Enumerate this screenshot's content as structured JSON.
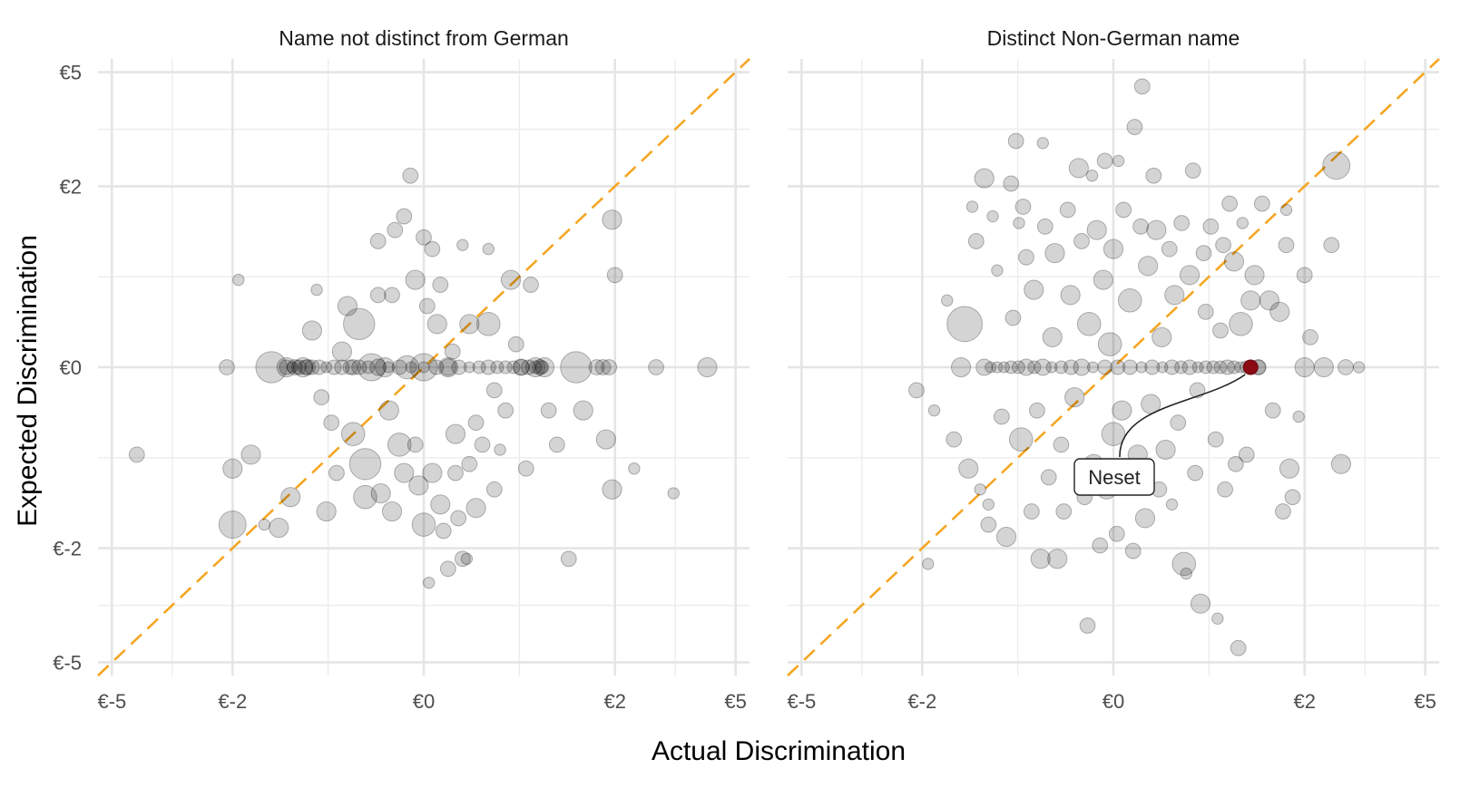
{
  "chart_data": {
    "type": "scatter",
    "xlabel": "Actual Discrimination",
    "ylabel": "Expected Discrimination",
    "scale": "symmetric-log",
    "xlim": [
      -5.5,
      5.5
    ],
    "ylim": [
      -5.5,
      5.5
    ],
    "ticks": [
      -5,
      -2,
      0,
      2,
      5
    ],
    "tick_labels": [
      "€-5",
      "€-2",
      "€0",
      "€2",
      "€5"
    ],
    "grid": true,
    "reference_line": "y = x",
    "colors": {
      "reference_line": "#f5a623",
      "points": "#000000",
      "highlight": "#8b0a14"
    },
    "panels": [
      {
        "title": "Name not distinct from German",
        "points": [
          [
            -4.2,
            -0.7,
            2
          ],
          [
            -2.1,
            0,
            2
          ],
          [
            -2,
            -1.6,
            5
          ],
          [
            -1.9,
            0.7,
            1
          ],
          [
            -2,
            -0.85,
            3
          ],
          [
            -1.7,
            -0.7,
            3
          ],
          [
            -1.5,
            -1.6,
            1
          ],
          [
            -1.3,
            -1.65,
            3
          ],
          [
            -1.15,
            -1.2,
            3
          ],
          [
            -1.4,
            0,
            6
          ],
          [
            -1.2,
            0,
            3
          ],
          [
            -1.1,
            0,
            2
          ],
          [
            -1,
            0,
            3
          ],
          [
            -0.95,
            0,
            2
          ],
          [
            -0.9,
            0.25,
            3
          ],
          [
            -0.85,
            0.6,
            1
          ],
          [
            -0.8,
            -0.2,
            2
          ],
          [
            -0.75,
            -1.4,
            3
          ],
          [
            -0.7,
            -0.4,
            2
          ],
          [
            -0.65,
            -0.9,
            2
          ],
          [
            -0.6,
            0.1,
            3
          ],
          [
            -0.55,
            0.45,
            3
          ],
          [
            -0.5,
            -0.5,
            4
          ],
          [
            -0.5,
            0,
            2
          ],
          [
            -0.45,
            0.3,
            6
          ],
          [
            -0.4,
            -0.8,
            6
          ],
          [
            -0.4,
            -1.2,
            4
          ],
          [
            -0.35,
            0,
            5
          ],
          [
            -0.3,
            0.55,
            2
          ],
          [
            -0.3,
            1.15,
            2
          ],
          [
            -0.28,
            -1.15,
            3
          ],
          [
            -0.25,
            0,
            3
          ],
          [
            -0.22,
            -0.3,
            3
          ],
          [
            -0.2,
            -1.4,
            3
          ],
          [
            -0.2,
            0.55,
            2
          ],
          [
            -0.18,
            1.3,
            2
          ],
          [
            -0.15,
            -0.6,
            4
          ],
          [
            -0.12,
            1.5,
            2
          ],
          [
            -0.12,
            -0.9,
            3
          ],
          [
            -0.1,
            0,
            4
          ],
          [
            -0.08,
            2.2,
            2
          ],
          [
            -0.05,
            0.7,
            3
          ],
          [
            -0.05,
            -0.6,
            2
          ],
          [
            -0.03,
            -1.05,
            3
          ],
          [
            0,
            -1.6,
            4
          ],
          [
            0,
            1.2,
            2
          ],
          [
            0,
            0,
            5
          ],
          [
            0.02,
            0.45,
            2
          ],
          [
            0.03,
            -2.7,
            1
          ],
          [
            0.05,
            1.05,
            2
          ],
          [
            0.05,
            -0.9,
            3
          ],
          [
            0.08,
            0.3,
            3
          ],
          [
            0.1,
            -1.3,
            3
          ],
          [
            0.1,
            0.65,
            2
          ],
          [
            0.12,
            -1.7,
            2
          ],
          [
            0.15,
            -2.4,
            2
          ],
          [
            0.15,
            0,
            3
          ],
          [
            0.18,
            0.1,
            2
          ],
          [
            0.2,
            -0.5,
            3
          ],
          [
            0.2,
            -0.9,
            2
          ],
          [
            0.22,
            -1.5,
            2
          ],
          [
            0.25,
            1.1,
            1
          ],
          [
            0.25,
            -2.2,
            2
          ],
          [
            0.28,
            -2.2,
            1
          ],
          [
            0.3,
            -0.8,
            2
          ],
          [
            0.3,
            0.3,
            3
          ],
          [
            0.35,
            -0.4,
            2
          ],
          [
            0.35,
            -1.35,
            3
          ],
          [
            0.4,
            -0.6,
            2
          ],
          [
            0.45,
            0.3,
            4
          ],
          [
            0.45,
            1.05,
            1
          ],
          [
            0.5,
            -0.15,
            2
          ],
          [
            0.5,
            -1.1,
            2
          ],
          [
            0.55,
            -0.65,
            1
          ],
          [
            0.6,
            -0.3,
            2
          ],
          [
            0.65,
            0.7,
            3
          ],
          [
            0.7,
            0.15,
            2
          ],
          [
            0.75,
            0,
            2
          ],
          [
            0.8,
            -0.85,
            2
          ],
          [
            0.85,
            0.65,
            2
          ],
          [
            0.9,
            0,
            3
          ],
          [
            0.95,
            0,
            2
          ],
          [
            1,
            0,
            3
          ],
          [
            1.05,
            -0.3,
            2
          ],
          [
            1.15,
            -0.6,
            2
          ],
          [
            1.3,
            -2.2,
            2
          ],
          [
            1.4,
            0,
            6
          ],
          [
            1.5,
            -0.3,
            3
          ],
          [
            1.7,
            0,
            2
          ],
          [
            1.8,
            0,
            2
          ],
          [
            1.85,
            -0.55,
            3
          ],
          [
            1.9,
            0,
            2
          ],
          [
            1.95,
            1.45,
            3
          ],
          [
            1.95,
            -1.1,
            3
          ],
          [
            2,
            0.75,
            2
          ],
          [
            2.35,
            -0.85,
            1
          ],
          [
            2.8,
            0,
            2
          ],
          [
            3.2,
            -1.15,
            1
          ],
          [
            4.1,
            0,
            3
          ]
        ],
        "spine": [
          -1.2,
          1.0,
          0.15
        ]
      },
      {
        "title": "Distinct Non-German name",
        "points": [
          [
            -2.1,
            -0.15,
            2
          ],
          [
            -1.9,
            -2.3,
            1
          ],
          [
            -1.8,
            -0.3,
            1
          ],
          [
            -1.6,
            0.5,
            1
          ],
          [
            -1.5,
            -0.55,
            2
          ],
          [
            -1.4,
            0,
            3
          ],
          [
            -1.35,
            0.3,
            7
          ],
          [
            -1.3,
            -0.85,
            3
          ],
          [
            -1.25,
            1.65,
            1
          ],
          [
            -1.2,
            1.15,
            2
          ],
          [
            -1.15,
            -1.1,
            1
          ],
          [
            -1.1,
            2.15,
            3
          ],
          [
            -1.05,
            -1.6,
            2
          ],
          [
            -1.05,
            -1.3,
            1
          ],
          [
            -1,
            1.5,
            1
          ],
          [
            -0.95,
            0.8,
            1
          ],
          [
            -0.9,
            -0.35,
            2
          ],
          [
            -0.85,
            -1.8,
            3
          ],
          [
            -0.8,
            2.05,
            2
          ],
          [
            -0.78,
            0.35,
            2
          ],
          [
            -0.75,
            2.95,
            2
          ],
          [
            -0.72,
            1.4,
            1
          ],
          [
            -0.7,
            -0.55,
            4
          ],
          [
            -0.68,
            1.65,
            2
          ],
          [
            -0.65,
            0.95,
            2
          ],
          [
            -0.6,
            -1.4,
            2
          ],
          [
            -0.58,
            0.6,
            3
          ],
          [
            -0.55,
            -0.3,
            2
          ],
          [
            -0.52,
            -2.2,
            3
          ],
          [
            -0.5,
            2.9,
            1
          ],
          [
            -0.48,
            1.35,
            2
          ],
          [
            -0.45,
            -0.95,
            2
          ],
          [
            -0.42,
            0.2,
            3
          ],
          [
            -0.4,
            1.0,
            3
          ],
          [
            -0.38,
            -2.2,
            3
          ],
          [
            -0.35,
            -0.6,
            2
          ],
          [
            -0.33,
            -1.4,
            2
          ],
          [
            -0.3,
            1.6,
            2
          ],
          [
            -0.28,
            0.55,
            3
          ],
          [
            -0.25,
            -0.2,
            3
          ],
          [
            -0.22,
            2.35,
            3
          ],
          [
            -0.2,
            1.15,
            2
          ],
          [
            -0.18,
            -1.2,
            2
          ],
          [
            -0.16,
            -3.8,
            2
          ],
          [
            -0.15,
            0.3,
            4
          ],
          [
            -0.13,
            2.2,
            1
          ],
          [
            -0.12,
            -0.8,
            3
          ],
          [
            -0.1,
            1.3,
            3
          ],
          [
            -0.08,
            -1.95,
            2
          ],
          [
            -0.06,
            0.7,
            3
          ],
          [
            -0.05,
            2.5,
            2
          ],
          [
            -0.04,
            -1.1,
            3
          ],
          [
            -0.02,
            0.15,
            4
          ],
          [
            0,
            -0.5,
            4
          ],
          [
            0,
            1.05,
            3
          ],
          [
            0.02,
            -1.75,
            2
          ],
          [
            0.03,
            2.5,
            1
          ],
          [
            0.05,
            -0.3,
            3
          ],
          [
            0.06,
            1.6,
            2
          ],
          [
            0.08,
            -0.95,
            3
          ],
          [
            0.1,
            0.5,
            4
          ],
          [
            0.12,
            -2.05,
            2
          ],
          [
            0.13,
            3.3,
            2
          ],
          [
            0.15,
            -0.7,
            3
          ],
          [
            0.17,
            1.35,
            2
          ],
          [
            0.18,
            4.5,
            2
          ],
          [
            0.2,
            -1.5,
            3
          ],
          [
            0.22,
            0.85,
            3
          ],
          [
            0.24,
            -0.25,
            3
          ],
          [
            0.26,
            2.2,
            2
          ],
          [
            0.28,
            1.3,
            3
          ],
          [
            0.3,
            -1.1,
            2
          ],
          [
            0.32,
            0.2,
            3
          ],
          [
            0.35,
            -0.65,
            3
          ],
          [
            0.38,
            1.05,
            2
          ],
          [
            0.4,
            -1.3,
            1
          ],
          [
            0.42,
            0.55,
            3
          ],
          [
            0.45,
            -0.4,
            2
          ],
          [
            0.48,
            1.4,
            2
          ],
          [
            0.5,
            -2.3,
            4
          ],
          [
            0.52,
            -2.5,
            1
          ],
          [
            0.55,
            0.75,
            3
          ],
          [
            0.58,
            2.3,
            2
          ],
          [
            0.6,
            -0.9,
            2
          ],
          [
            0.62,
            -0.15,
            2
          ],
          [
            0.65,
            -3.2,
            3
          ],
          [
            0.68,
            1.0,
            2
          ],
          [
            0.7,
            0.4,
            2
          ],
          [
            0.75,
            1.35,
            2
          ],
          [
            0.8,
            -0.55,
            2
          ],
          [
            0.82,
            -3.6,
            1
          ],
          [
            0.85,
            0.25,
            2
          ],
          [
            0.88,
            1.1,
            2
          ],
          [
            0.9,
            -1.1,
            2
          ],
          [
            0.95,
            1.7,
            2
          ],
          [
            1,
            0.9,
            3
          ],
          [
            1.02,
            -0.8,
            2
          ],
          [
            1.05,
            -4.5,
            2
          ],
          [
            1.08,
            0.3,
            4
          ],
          [
            1.1,
            1.4,
            1
          ],
          [
            1.15,
            -0.7,
            2
          ],
          [
            1.2,
            0.5,
            3
          ],
          [
            1.25,
            0.75,
            3
          ],
          [
            1.3,
            0,
            2
          ],
          [
            1.35,
            1.7,
            2
          ],
          [
            1.45,
            0.5,
            3
          ],
          [
            1.5,
            -0.3,
            2
          ],
          [
            1.6,
            0.4,
            3
          ],
          [
            1.65,
            -1.4,
            2
          ],
          [
            1.7,
            1.1,
            2
          ],
          [
            1.7,
            1.6,
            1
          ],
          [
            1.75,
            -0.85,
            3
          ],
          [
            1.8,
            -1.2,
            2
          ],
          [
            1.9,
            -0.35,
            1
          ],
          [
            2,
            0,
            3
          ],
          [
            2,
            0.75,
            2
          ],
          [
            2.1,
            0.2,
            2
          ],
          [
            2.35,
            0,
            3
          ],
          [
            2.5,
            1.1,
            2
          ],
          [
            2.6,
            2.4,
            5
          ],
          [
            2.7,
            -0.8,
            3
          ],
          [
            2.8,
            0,
            2
          ],
          [
            3.1,
            0,
            1
          ]
        ],
        "spine": [
          -1.1,
          1.35,
          0.15
        ],
        "highlight": {
          "x": 1.2,
          "y": 0,
          "label": "Neset"
        }
      }
    ]
  }
}
